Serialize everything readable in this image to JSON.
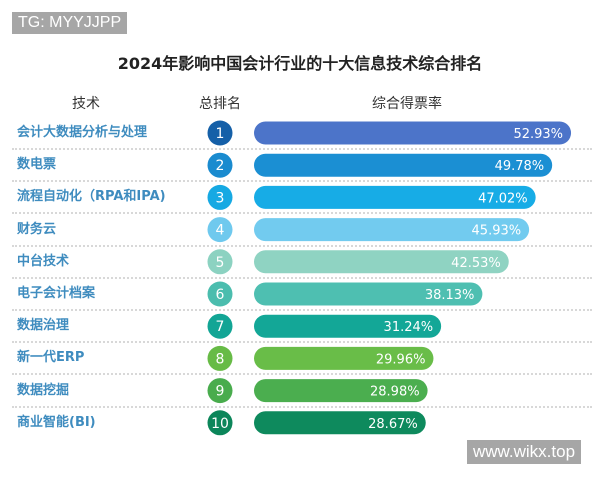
{
  "watermarks": {
    "top_left": "TG: MYYJJPP",
    "bottom_right": "www.wikx.top"
  },
  "chart_data": {
    "type": "bar",
    "orientation": "horizontal",
    "title": "2024年影响中国会计行业的十大信息技术综合排名",
    "column_headers": {
      "category": "技术",
      "rank": "总排名",
      "value": "综合得票率"
    },
    "categories": [
      "会计大数据分析与处理",
      "数电票",
      "流程自动化（RPA和IPA)",
      "财务云",
      "中台技术",
      "电子会计档案",
      "数据治理",
      "新一代ERP",
      "数据挖掘",
      "商业智能(BI)"
    ],
    "ranks": [
      "1",
      "2",
      "3",
      "4",
      "5",
      "6",
      "7",
      "8",
      "9",
      "10"
    ],
    "values": [
      52.93,
      49.78,
      47.02,
      45.93,
      42.53,
      38.13,
      31.24,
      29.96,
      28.98,
      28.67
    ],
    "value_labels": [
      "52.93%",
      "49.78%",
      "47.02%",
      "45.93%",
      "42.53%",
      "38.13%",
      "31.24%",
      "29.96%",
      "28.98%",
      "28.67%"
    ],
    "bar_colors": [
      "#4c74c9",
      "#1b8fd3",
      "#17ace6",
      "#72cbef",
      "#8fd3c2",
      "#4ebfb1",
      "#13a797",
      "#69bd48",
      "#4bae4f",
      "#0e8a5d"
    ],
    "rank_colors": [
      "#1560a8",
      "#1a8bcf",
      "#16a9e3",
      "#6fc9ee",
      "#8cd2c1",
      "#4bbdae",
      "#12a595",
      "#67bb46",
      "#49ac4d",
      "#0c865a"
    ],
    "category_label_color": "#3f8cbf",
    "grid": false
  }
}
